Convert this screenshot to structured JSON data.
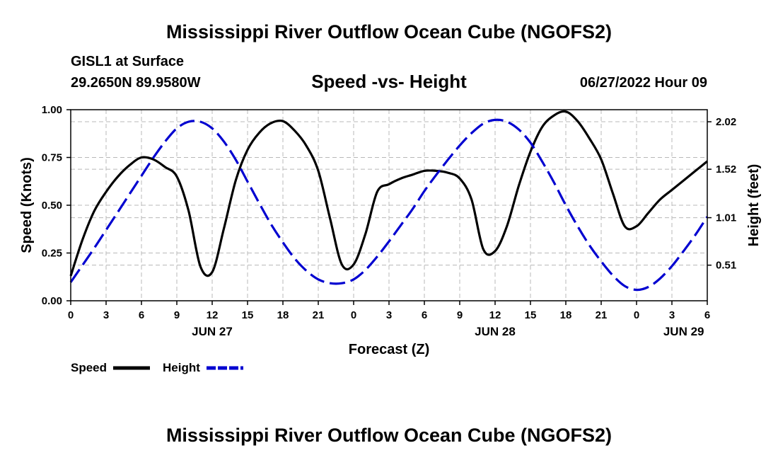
{
  "header": {
    "title": "Mississippi River Outflow Ocean Cube (NGOFS2)",
    "footer_title": "Mississippi River Outflow Ocean Cube (NGOFS2)",
    "station": "GISL1 at Surface",
    "coords": "29.2650N  89.9580W",
    "datetime": "06/27/2022 Hour 09"
  },
  "chart_data": {
    "type": "line",
    "title": "Speed -vs- Height",
    "xlabel": "Forecast (Z)",
    "ylabel": "Speed (Knots)",
    "y2label": "Height (feet)",
    "x_start_hour": 0,
    "xlim": [
      0,
      54
    ],
    "ylim": [
      0,
      1.0
    ],
    "y2lim": [
      0.135,
      2.147
    ],
    "x_ticks": [
      0,
      3,
      6,
      9,
      12,
      15,
      18,
      21,
      24,
      27,
      30,
      33,
      36,
      39,
      42,
      45,
      48,
      51,
      54
    ],
    "x_tick_labels": [
      "0",
      "3",
      "6",
      "9",
      "12",
      "15",
      "18",
      "21",
      "0",
      "3",
      "6",
      "9",
      "12",
      "15",
      "18",
      "21",
      "0",
      "3",
      "6"
    ],
    "date_labels": [
      {
        "hour": 12,
        "label": "JUN 27"
      },
      {
        "hour": 36,
        "label": "JUN 28"
      },
      {
        "hour": 52,
        "label": "JUN 29"
      }
    ],
    "y_ticks": [
      0,
      0.25,
      0.5,
      0.75,
      1.0
    ],
    "y_tick_labels": [
      "0.00",
      "0.25",
      "0.50",
      "0.75",
      "1.00"
    ],
    "y2_ticks": [
      0.51,
      1.01,
      1.52,
      2.02
    ],
    "y2_tick_labels": [
      "0.51",
      "1.01",
      "1.52",
      "2.02"
    ],
    "grid": true,
    "legend_position": "bottom-left",
    "series": [
      {
        "name": "Speed",
        "axis": "left",
        "color": "#000000",
        "dash": "solid",
        "x": [
          0,
          1,
          2,
          3,
          4,
          5,
          6,
          7,
          8,
          9,
          10,
          11,
          12,
          13,
          14,
          15,
          16,
          17,
          18,
          19,
          20,
          21,
          22,
          23,
          24,
          25,
          26,
          27,
          28,
          29,
          30,
          31,
          32,
          33,
          34,
          35,
          36,
          37,
          38,
          39,
          40,
          41,
          42,
          43,
          44,
          45,
          46,
          47,
          48,
          49,
          50,
          51,
          52,
          53,
          54
        ],
        "values": [
          0.13,
          0.32,
          0.47,
          0.57,
          0.65,
          0.71,
          0.75,
          0.74,
          0.7,
          0.65,
          0.47,
          0.18,
          0.15,
          0.38,
          0.63,
          0.79,
          0.88,
          0.93,
          0.94,
          0.89,
          0.81,
          0.68,
          0.43,
          0.19,
          0.19,
          0.35,
          0.57,
          0.61,
          0.64,
          0.66,
          0.68,
          0.68,
          0.67,
          0.64,
          0.53,
          0.27,
          0.26,
          0.39,
          0.6,
          0.78,
          0.91,
          0.97,
          0.99,
          0.94,
          0.85,
          0.74,
          0.56,
          0.39,
          0.39,
          0.46,
          0.53,
          0.58,
          0.63,
          0.68,
          0.73
        ]
      },
      {
        "name": "Height",
        "axis": "right",
        "color": "#0000d0",
        "dash": "dashed",
        "x": [
          0,
          1,
          2,
          3,
          4,
          5,
          6,
          7,
          8,
          9,
          10,
          11,
          12,
          13,
          14,
          15,
          16,
          17,
          18,
          19,
          20,
          21,
          22,
          23,
          24,
          25,
          26,
          27,
          28,
          29,
          30,
          31,
          32,
          33,
          34,
          35,
          36,
          37,
          38,
          39,
          40,
          41,
          42,
          43,
          44,
          45,
          46,
          47,
          48,
          49,
          50,
          51,
          52,
          53,
          54
        ],
        "values": [
          0.33,
          0.51,
          0.69,
          0.88,
          1.07,
          1.26,
          1.45,
          1.64,
          1.81,
          1.95,
          2.02,
          2.02,
          1.95,
          1.81,
          1.62,
          1.39,
          1.16,
          0.94,
          0.75,
          0.58,
          0.45,
          0.36,
          0.32,
          0.32,
          0.36,
          0.46,
          0.6,
          0.76,
          0.93,
          1.1,
          1.29,
          1.46,
          1.62,
          1.77,
          1.9,
          2.0,
          2.04,
          2.02,
          1.94,
          1.8,
          1.6,
          1.38,
          1.14,
          0.92,
          0.72,
          0.55,
          0.4,
          0.29,
          0.25,
          0.28,
          0.37,
          0.5,
          0.66,
          0.83,
          1.02
        ]
      }
    ]
  }
}
